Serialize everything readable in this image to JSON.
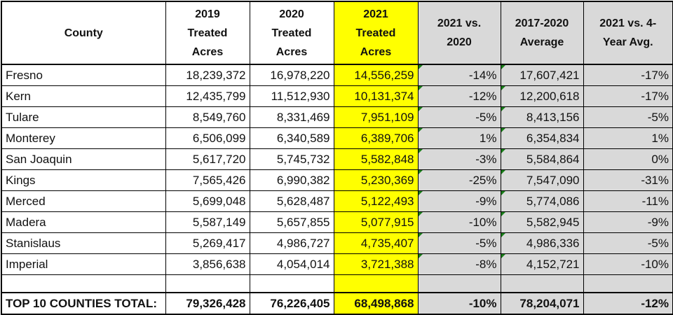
{
  "headers": {
    "county": "County",
    "y2019": [
      "2019",
      "Treated",
      "Acres"
    ],
    "y2020": [
      "2020",
      "Treated",
      "Acres"
    ],
    "y2021": [
      "2021",
      "Treated",
      "Acres"
    ],
    "vs2020": [
      "2021 vs.",
      "2020"
    ],
    "avg": [
      "2017-2020",
      "Average"
    ],
    "vsAvg": [
      "2021 vs. 4-",
      "Year Avg."
    ]
  },
  "colors": {
    "highlight": "#ffff00",
    "shade": "#d9d9d9",
    "marker": "#1a7f1a"
  },
  "rows": [
    {
      "county": "Fresno",
      "y2019": "18,239,372",
      "y2020": "16,978,220",
      "y2021": "14,556,259",
      "vs2020": "-14%",
      "avg": "17,607,421",
      "vsAvg": "-17%"
    },
    {
      "county": "Kern",
      "y2019": "12,435,799",
      "y2020": "11,512,930",
      "y2021": "10,131,374",
      "vs2020": "-12%",
      "avg": "12,200,618",
      "vsAvg": "-17%"
    },
    {
      "county": "Tulare",
      "y2019": "8,549,760",
      "y2020": "8,331,469",
      "y2021": "7,951,109",
      "vs2020": "-5%",
      "avg": "8,413,156",
      "vsAvg": "-5%"
    },
    {
      "county": "Monterey",
      "y2019": "6,506,099",
      "y2020": "6,340,589",
      "y2021": "6,389,706",
      "vs2020": "1%",
      "avg": "6,354,834",
      "vsAvg": "1%"
    },
    {
      "county": "San Joaquin",
      "y2019": "5,617,720",
      "y2020": "5,745,732",
      "y2021": "5,582,848",
      "vs2020": "-3%",
      "avg": "5,584,864",
      "vsAvg": "0%"
    },
    {
      "county": "Kings",
      "y2019": "7,565,426",
      "y2020": "6,990,382",
      "y2021": "5,230,369",
      "vs2020": "-25%",
      "avg": "7,547,090",
      "vsAvg": "-31%"
    },
    {
      "county": "Merced",
      "y2019": "5,699,048",
      "y2020": "5,628,487",
      "y2021": "5,122,493",
      "vs2020": "-9%",
      "avg": "5,774,086",
      "vsAvg": "-11%"
    },
    {
      "county": "Madera",
      "y2019": "5,587,149",
      "y2020": "5,657,855",
      "y2021": "5,077,915",
      "vs2020": "-10%",
      "avg": "5,582,945",
      "vsAvg": "-9%"
    },
    {
      "county": "Stanislaus",
      "y2019": "5,269,417",
      "y2020": "4,986,727",
      "y2021": "4,735,407",
      "vs2020": "-5%",
      "avg": "4,986,336",
      "vsAvg": "-5%"
    },
    {
      "county": "Imperial",
      "y2019": "3,856,638",
      "y2020": "4,054,014",
      "y2021": "3,721,388",
      "vs2020": "-8%",
      "avg": "4,152,721",
      "vsAvg": "-10%"
    }
  ],
  "total": {
    "label": "TOP 10 COUNTIES TOTAL:",
    "y2019": "79,326,428",
    "y2020": "76,226,405",
    "y2021": "68,498,868",
    "vs2020": "-10%",
    "avg": "78,204,071",
    "vsAvg": "-12%"
  }
}
